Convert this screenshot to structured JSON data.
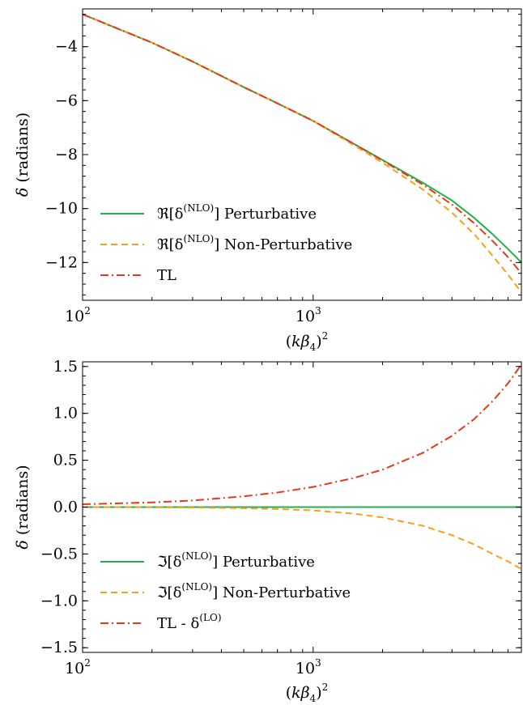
{
  "chart_data": [
    {
      "type": "line",
      "panel": "top",
      "xscale": "log",
      "xlim": [
        100,
        8000
      ],
      "ylim": [
        -13.4,
        -2.6
      ],
      "xlabel": "(kβ₄)²",
      "ylabel": "δ (radians)",
      "x_ticks": [
        {
          "value": 100,
          "base": "10",
          "exp": "2"
        },
        {
          "value": 1000,
          "base": "10",
          "exp": "3"
        }
      ],
      "y_ticks": [
        {
          "value": -4,
          "label": "−4"
        },
        {
          "value": -6,
          "label": "−6"
        },
        {
          "value": -8,
          "label": "−8"
        },
        {
          "value": -10,
          "label": "−10"
        },
        {
          "value": -12,
          "label": "−12"
        }
      ],
      "grid": false,
      "legend_position": "lower-left",
      "series": [
        {
          "name": "ℜ[δ^(NLO)] Perturbative",
          "legend_prefix": "ℜ[δ",
          "legend_sup": "(NLO)",
          "legend_suffix": "] Perturbative",
          "color": "#1fb34a",
          "style": "solid",
          "x": [
            100,
            200,
            300,
            500,
            700,
            1000,
            1500,
            2000,
            3000,
            4000,
            5000,
            6000,
            7000,
            8000
          ],
          "y": [
            -2.8,
            -3.85,
            -4.55,
            -5.5,
            -6.1,
            -6.75,
            -7.6,
            -8.2,
            -9.05,
            -9.7,
            -10.35,
            -10.95,
            -11.5,
            -12.0
          ]
        },
        {
          "name": "ℜ[δ^(NLO)] Non-Perturbative",
          "legend_prefix": "ℜ[δ",
          "legend_sup": "(NLO)",
          "legend_suffix": "] Non-Perturbative",
          "color": "#f5a21b",
          "style": "dashed",
          "x": [
            100,
            200,
            300,
            500,
            700,
            1000,
            1500,
            2000,
            3000,
            4000,
            5000,
            6000,
            7000,
            8000
          ],
          "y": [
            -2.8,
            -3.85,
            -4.55,
            -5.5,
            -6.1,
            -6.75,
            -7.65,
            -8.3,
            -9.3,
            -10.15,
            -10.95,
            -11.75,
            -12.45,
            -13.1
          ]
        },
        {
          "name": "TL",
          "legend_prefix": "TL",
          "legend_sup": "",
          "legend_suffix": "",
          "color": "#e8371a",
          "style": "dashdot",
          "x": [
            100,
            200,
            300,
            500,
            700,
            1000,
            1500,
            2000,
            3000,
            4000,
            5000,
            6000,
            7000,
            8000
          ],
          "y": [
            -2.8,
            -3.85,
            -4.55,
            -5.5,
            -6.1,
            -6.75,
            -7.6,
            -8.22,
            -9.12,
            -9.85,
            -10.55,
            -11.2,
            -11.8,
            -12.4
          ]
        }
      ]
    },
    {
      "type": "line",
      "panel": "bottom",
      "xscale": "log",
      "xlim": [
        100,
        8000
      ],
      "ylim": [
        -1.55,
        1.55
      ],
      "xlabel": "(kβ₄)²",
      "ylabel": "δ (radians)",
      "x_ticks": [
        {
          "value": 100,
          "base": "10",
          "exp": "2"
        },
        {
          "value": 1000,
          "base": "10",
          "exp": "3"
        }
      ],
      "y_ticks": [
        {
          "value": -1.5,
          "label": "−1.5"
        },
        {
          "value": -1.0,
          "label": "−1.0"
        },
        {
          "value": -0.5,
          "label": "−0.5"
        },
        {
          "value": 0.0,
          "label": "0.0"
        },
        {
          "value": 0.5,
          "label": "0.5"
        },
        {
          "value": 1.0,
          "label": "1.0"
        },
        {
          "value": 1.5,
          "label": "1.5"
        }
      ],
      "grid": false,
      "legend_position": "lower-left",
      "series": [
        {
          "name": "ℑ[δ^(NLO)] Perturbative",
          "legend_prefix": "ℑ[δ",
          "legend_sup": "(NLO)",
          "legend_suffix": "] Perturbative",
          "color": "#1fb34a",
          "style": "solid",
          "x": [
            100,
            8000
          ],
          "y": [
            0.0,
            0.0
          ]
        },
        {
          "name": "ℑ[δ^(NLO)] Non-Perturbative",
          "legend_prefix": "ℑ[δ",
          "legend_sup": "(NLO)",
          "legend_suffix": "] Non-Perturbative",
          "color": "#f5a21b",
          "style": "dashed",
          "x": [
            100,
            200,
            300,
            500,
            700,
            1000,
            1500,
            2000,
            3000,
            4000,
            5000,
            6000,
            7000,
            8000
          ],
          "y": [
            0.0,
            -0.002,
            -0.005,
            -0.012,
            -0.02,
            -0.035,
            -0.07,
            -0.11,
            -0.2,
            -0.3,
            -0.4,
            -0.5,
            -0.58,
            -0.66
          ]
        },
        {
          "name": "TL - δ^(LO)",
          "legend_prefix": "TL - δ",
          "legend_sup": "(LO)",
          "legend_suffix": "",
          "color": "#e8371a",
          "style": "dashdot",
          "x": [
            100,
            200,
            300,
            500,
            700,
            1000,
            1500,
            2000,
            3000,
            4000,
            5000,
            6000,
            7000,
            8000
          ],
          "y": [
            0.03,
            0.05,
            0.07,
            0.115,
            0.155,
            0.215,
            0.31,
            0.4,
            0.58,
            0.76,
            0.94,
            1.13,
            1.32,
            1.52
          ]
        }
      ]
    }
  ]
}
